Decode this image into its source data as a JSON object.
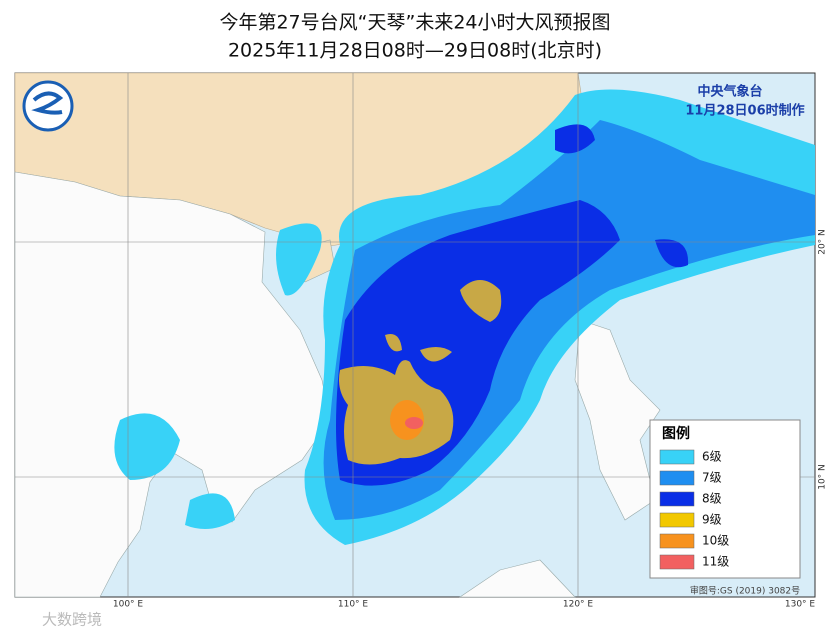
{
  "header": {
    "title": "今年第27号台风“天琴”未来24小时大风预报图",
    "subtitle": "2025年11月28日08时—29日08时(北京时)"
  },
  "agency": {
    "name": "中央气象台",
    "issued": "11月28日06时制作"
  },
  "legend": {
    "title": "图例",
    "items": [
      {
        "label": "6级",
        "color": "#38d2f7"
      },
      {
        "label": "7级",
        "color": "#1f8ef0"
      },
      {
        "label": "8级",
        "color": "#0a2ee6"
      },
      {
        "label": "9级",
        "color": "#f2c800"
      },
      {
        "label": "10级",
        "color": "#f7921e"
      },
      {
        "label": "11级",
        "color": "#f26060"
      }
    ]
  },
  "axes": {
    "longitude": [
      "100° E",
      "110° E",
      "120° E",
      "130° E"
    ],
    "latitude": [
      "20° N",
      "10° N"
    ]
  },
  "footer": {
    "approval": "审图号:GS (2019) 3082号",
    "watermark": "大数跨境"
  }
}
